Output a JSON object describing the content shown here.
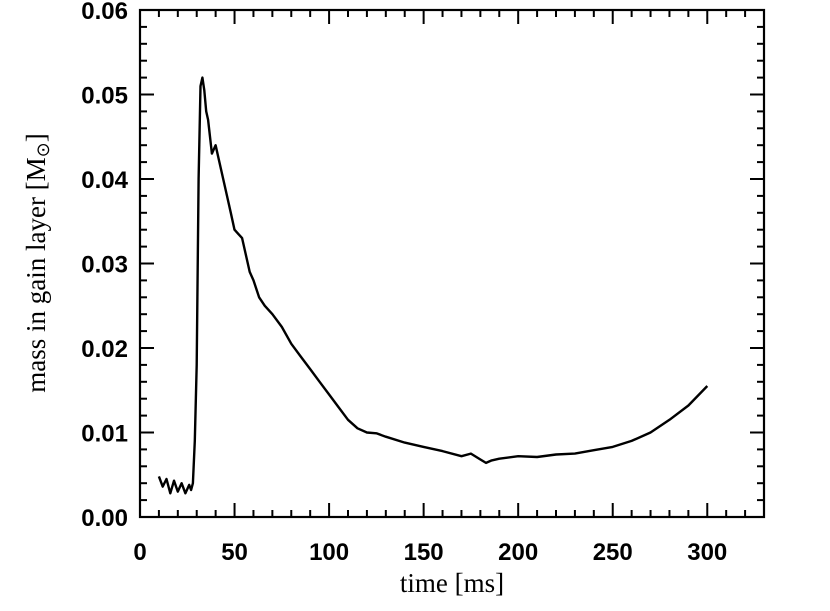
{
  "chart_data": {
    "type": "line",
    "xlabel": "time [ms]",
    "ylabel_main": "mass in gain layer [M",
    "ylabel_symbol": "⊙",
    "ylabel_close": "]",
    "xlim": [
      0,
      330
    ],
    "ylim": [
      0.0,
      0.06
    ],
    "xticks": [
      0,
      50,
      100,
      150,
      200,
      250,
      300
    ],
    "xtick_labels": [
      "0",
      "50",
      "100",
      "150",
      "200",
      "250",
      "300"
    ],
    "yticks": [
      0.0,
      0.01,
      0.02,
      0.03,
      0.04,
      0.05,
      0.06
    ],
    "ytick_labels": [
      "0.00",
      "0.01",
      "0.02",
      "0.03",
      "0.04",
      "0.05",
      "0.06"
    ],
    "grid": false,
    "line_color": "#000000",
    "series": [
      {
        "x": [
          10,
          12,
          14,
          16,
          18,
          20,
          22,
          24,
          26,
          27,
          28,
          29,
          30,
          31,
          32,
          33,
          34,
          35,
          36,
          37,
          38,
          40,
          42,
          44,
          46,
          48,
          50,
          52,
          54,
          56,
          58,
          60,
          63,
          66,
          70,
          75,
          80,
          85,
          90,
          95,
          100,
          105,
          110,
          115,
          120,
          125,
          130,
          140,
          150,
          160,
          170,
          175,
          180,
          183,
          186,
          190,
          200,
          210,
          220,
          230,
          240,
          250,
          260,
          270,
          280,
          290,
          300
        ],
        "y": [
          0.0048,
          0.0036,
          0.0045,
          0.0028,
          0.0043,
          0.003,
          0.004,
          0.0028,
          0.0038,
          0.0032,
          0.004,
          0.009,
          0.018,
          0.04,
          0.051,
          0.052,
          0.0505,
          0.048,
          0.047,
          0.045,
          0.043,
          0.044,
          0.042,
          0.04,
          0.038,
          0.036,
          0.034,
          0.0335,
          0.033,
          0.031,
          0.029,
          0.028,
          0.026,
          0.025,
          0.024,
          0.0225,
          0.0205,
          0.019,
          0.0175,
          0.016,
          0.0145,
          0.013,
          0.0115,
          0.0105,
          0.01,
          0.0099,
          0.0095,
          0.0088,
          0.0083,
          0.0078,
          0.0072,
          0.0075,
          0.0068,
          0.0064,
          0.0067,
          0.0069,
          0.0072,
          0.0071,
          0.0074,
          0.0075,
          0.0079,
          0.0083,
          0.009,
          0.01,
          0.0115,
          0.0132,
          0.0155
        ]
      }
    ]
  }
}
